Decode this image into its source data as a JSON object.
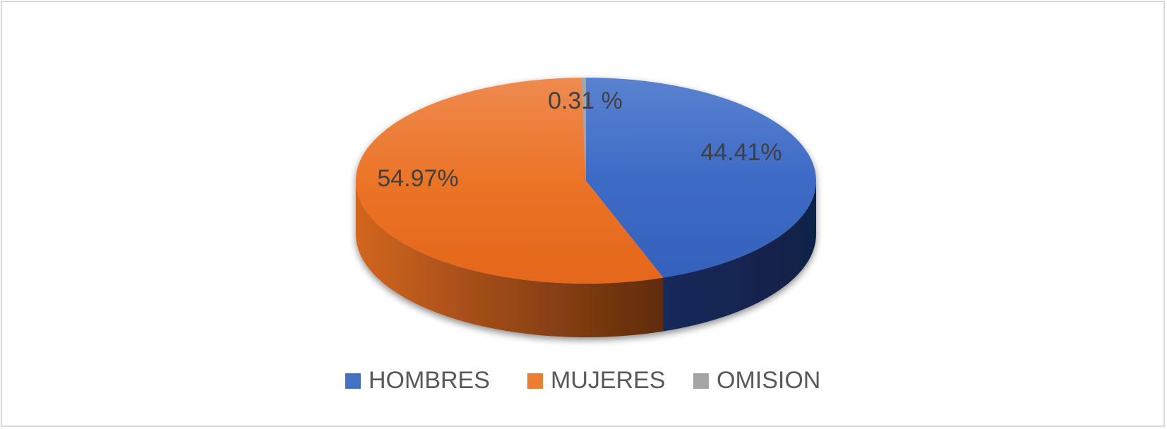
{
  "chart_data": {
    "type": "pie",
    "style": "3d",
    "title": "",
    "slices": [
      {
        "name": "HOMBRES",
        "value": 44.41,
        "label": "44.41%",
        "color": "#4472C4"
      },
      {
        "name": "MUJERES",
        "value": 54.97,
        "label": "54.97%",
        "color": "#ED7D31"
      },
      {
        "name": "OMISION",
        "value": 0.31,
        "label": "0.31 %",
        "color": "#A5A5A5"
      }
    ],
    "legend_position": "bottom"
  }
}
